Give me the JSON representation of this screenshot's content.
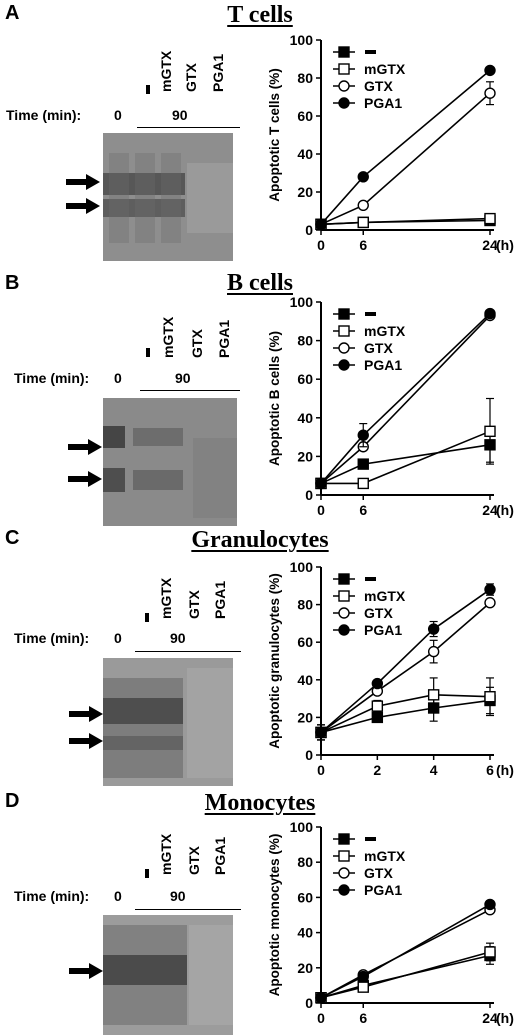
{
  "panels": [
    {
      "letter": "A",
      "title": "T cells",
      "gel": {
        "lanes": [
          "-",
          "mGTX",
          "GTX",
          "PGA1"
        ],
        "time_label": "Time (min):",
        "time_zero": "0",
        "time_treated": "90",
        "arrow_count": 2
      },
      "chart_data": {
        "type": "line",
        "title": "",
        "xlabel": "",
        "ylabel": "Apoptotic T cells (%)",
        "x": [
          0,
          6,
          24
        ],
        "x_ticks": [
          "0",
          "6",
          "24"
        ],
        "x_unit": "(h)",
        "ylim": [
          0,
          100
        ],
        "y_ticks": [
          0,
          20,
          40,
          60,
          80,
          100
        ],
        "legend_position": "top-right",
        "series": [
          {
            "name": "-",
            "marker": "filled-square",
            "values": [
              3,
              4,
              5
            ],
            "errors": [
              0,
              0,
              1
            ]
          },
          {
            "name": "mGTX",
            "marker": "open-square",
            "values": [
              3,
              4,
              6
            ],
            "errors": [
              0,
              0,
              1
            ]
          },
          {
            "name": "GTX",
            "marker": "open-circle",
            "values": [
              3,
              13,
              72
            ],
            "errors": [
              0,
              0,
              6
            ]
          },
          {
            "name": "PGA1",
            "marker": "filled-circle",
            "values": [
              3,
              28,
              84
            ],
            "errors": [
              0,
              0,
              0
            ]
          }
        ]
      }
    },
    {
      "letter": "B",
      "title": "B cells",
      "gel": {
        "lanes": [
          "-",
          "mGTX",
          "GTX",
          "PGA1"
        ],
        "time_label": "Time (min):",
        "time_zero": "0",
        "time_treated": "90",
        "arrow_count": 2
      },
      "chart_data": {
        "type": "line",
        "title": "",
        "xlabel": "",
        "ylabel": "Apoptotic B cells (%)",
        "x": [
          0,
          6,
          24
        ],
        "x_ticks": [
          "0",
          "6",
          "24"
        ],
        "x_unit": "(h)",
        "ylim": [
          0,
          100
        ],
        "y_ticks": [
          0,
          20,
          40,
          60,
          80,
          100
        ],
        "legend_position": "top-left",
        "series": [
          {
            "name": "-",
            "marker": "filled-square",
            "values": [
              6,
              16,
              26
            ],
            "errors": [
              0,
              0,
              9
            ]
          },
          {
            "name": "mGTX",
            "marker": "open-square",
            "values": [
              6,
              6,
              33
            ],
            "errors": [
              0,
              0,
              17
            ]
          },
          {
            "name": "GTX",
            "marker": "open-circle",
            "values": [
              6,
              25,
              93
            ],
            "errors": [
              0,
              0,
              0
            ]
          },
          {
            "name": "PGA1",
            "marker": "filled-circle",
            "values": [
              6,
              31,
              94
            ],
            "errors": [
              0,
              6,
              0
            ]
          }
        ]
      }
    },
    {
      "letter": "C",
      "title": "Granulocytes",
      "gel": {
        "lanes": [
          "-",
          "mGTX",
          "GTX",
          "PGA1"
        ],
        "time_label": "Time (min):",
        "time_zero": "0",
        "time_treated": "90",
        "arrow_count": 2
      },
      "chart_data": {
        "type": "line",
        "title": "",
        "xlabel": "",
        "ylabel": "Apoptotic granulocytes (%)",
        "x": [
          0,
          2,
          4,
          6
        ],
        "x_ticks": [
          "0",
          "2",
          "4",
          "6"
        ],
        "x_unit": "(h)",
        "ylim": [
          0,
          100
        ],
        "y_ticks": [
          0,
          20,
          40,
          60,
          80,
          100
        ],
        "legend_position": "top-left",
        "series": [
          {
            "name": "-",
            "marker": "filled-square",
            "values": [
              12,
              20,
              25,
              29
            ],
            "errors": [
              4,
              0,
              7,
              7
            ]
          },
          {
            "name": "mGTX",
            "marker": "open-square",
            "values": [
              12,
              26,
              32,
              31
            ],
            "errors": [
              4,
              3,
              9,
              10
            ]
          },
          {
            "name": "GTX",
            "marker": "open-circle",
            "values": [
              12,
              34,
              55,
              81
            ],
            "errors": [
              4,
              0,
              6,
              0
            ]
          },
          {
            "name": "PGA1",
            "marker": "filled-circle",
            "values": [
              12,
              38,
              67,
              88
            ],
            "errors": [
              4,
              0,
              4,
              3
            ]
          }
        ]
      }
    },
    {
      "letter": "D",
      "title": "Monocytes",
      "gel": {
        "lanes": [
          "-",
          "mGTX",
          "GTX",
          "PGA1"
        ],
        "time_label": "Time (min):",
        "time_zero": "0",
        "time_treated": "90",
        "arrow_count": 1
      },
      "chart_data": {
        "type": "line",
        "title": "",
        "xlabel": "",
        "ylabel": "Apoptotic monocytes (%)",
        "x": [
          0,
          6,
          24
        ],
        "x_ticks": [
          "0",
          "6",
          "24"
        ],
        "x_unit": "(h)",
        "ylim": [
          0,
          100
        ],
        "y_ticks": [
          0,
          20,
          40,
          60,
          80,
          100
        ],
        "legend_position": "top-left",
        "series": [
          {
            "name": "-",
            "marker": "filled-square",
            "values": [
              3,
              10,
              27
            ],
            "errors": [
              0,
              0,
              5
            ]
          },
          {
            "name": "mGTX",
            "marker": "open-square",
            "values": [
              3,
              9,
              29
            ],
            "errors": [
              0,
              0,
              5
            ]
          },
          {
            "name": "GTX",
            "marker": "open-circle",
            "values": [
              3,
              16,
              53
            ],
            "errors": [
              0,
              2,
              2
            ]
          },
          {
            "name": "PGA1",
            "marker": "filled-circle",
            "values": [
              3,
              15,
              56
            ],
            "errors": [
              0,
              2,
              2
            ]
          }
        ]
      }
    }
  ]
}
